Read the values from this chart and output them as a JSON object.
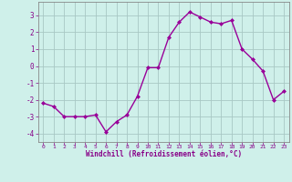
{
  "x": [
    0,
    1,
    2,
    3,
    4,
    5,
    6,
    7,
    8,
    9,
    10,
    11,
    12,
    13,
    14,
    15,
    16,
    17,
    18,
    19,
    20,
    21,
    22,
    23
  ],
  "y": [
    -2.2,
    -2.4,
    -3.0,
    -3.0,
    -3.0,
    -2.9,
    -3.9,
    -3.3,
    -2.9,
    -1.8,
    -0.1,
    -0.1,
    1.7,
    2.6,
    3.2,
    2.9,
    2.6,
    2.5,
    2.7,
    1.0,
    0.4,
    -0.3,
    -2.0,
    -1.5
  ],
  "line_color": "#990099",
  "marker": "D",
  "markersize": 2,
  "bg_color": "#cff0ea",
  "grid_color": "#a8c8c4",
  "xlabel": "Windchill (Refroidissement éolien,°C)",
  "xlim": [
    -0.5,
    23.5
  ],
  "ylim": [
    -4.5,
    3.8
  ],
  "yticks": [
    -4,
    -3,
    -2,
    -1,
    0,
    1,
    2,
    3
  ],
  "xticks": [
    0,
    1,
    2,
    3,
    4,
    5,
    6,
    7,
    8,
    9,
    10,
    11,
    12,
    13,
    14,
    15,
    16,
    17,
    18,
    19,
    20,
    21,
    22,
    23
  ],
  "xlabel_color": "#880088",
  "tick_color": "#880088",
  "spine_color": "#888888",
  "linewidth": 1.0
}
